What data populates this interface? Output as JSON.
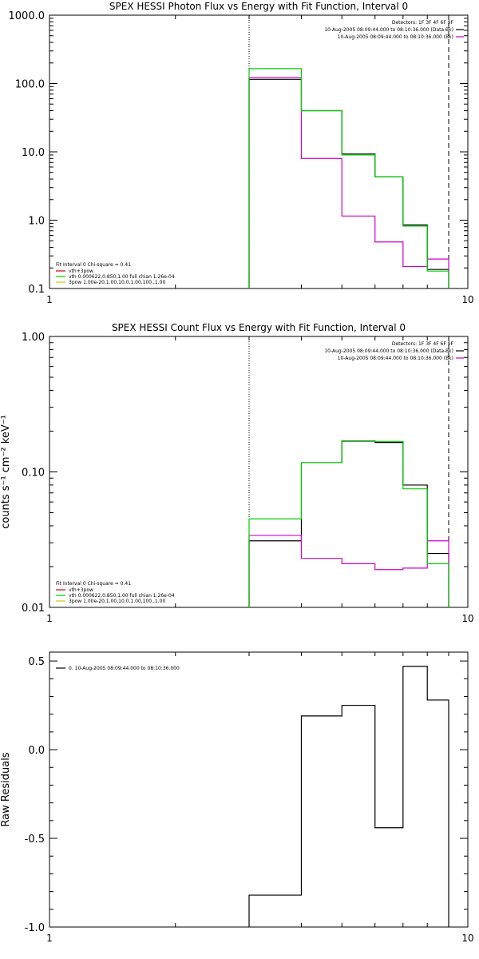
{
  "chart_data": [
    {
      "type": "line",
      "title": "SPEX HESSI Photon Flux vs Energy with Fit Function, Interval 0",
      "xlabel": "",
      "ylabel": "",
      "xscale": "log",
      "yscale": "log",
      "xlim": [
        1,
        10
      ],
      "ylim": [
        0.1,
        1000
      ],
      "xticks": [
        {
          "v": 1,
          "label": "1"
        },
        {
          "v": 10,
          "label": "10"
        }
      ],
      "yticks": [
        {
          "v": 0.1,
          "label": "0.1"
        },
        {
          "v": 1,
          "label": "1.0"
        },
        {
          "v": 10,
          "label": "10.0"
        },
        {
          "v": 100,
          "label": "100.0"
        },
        {
          "v": 1000,
          "label": "1000.0"
        }
      ],
      "vlines": [
        {
          "x": 3.0,
          "style": "dotted"
        },
        {
          "x": 9.0,
          "style": "dashed"
        }
      ],
      "legend_top": {
        "lines": [
          {
            "text": "Detectors: 1F 3F 4F 6F 9F",
            "color": null
          },
          {
            "text": "10-Aug-2005 08:09:44.000 to 08:10:36.000 (Data-Bk)",
            "color": "#000000"
          },
          {
            "text": "10-Aug-2005 08:09:44.000 to 08:10:36.000 (Bk)",
            "color": "#cc00cc"
          }
        ]
      },
      "legend_bottom": {
        "header": "Fit Interval  0   Chi-square = 0.41",
        "lines": [
          {
            "text": "vth+3pow",
            "color": "#cc0000"
          },
          {
            "text": "vth 0.000622,0.850,1.00  full chian 1.26e-04",
            "color": "#00cc00"
          },
          {
            "text": "3pow 1.00e-20,1.00,10.0,1.00,100.,1.00",
            "color": "#cccc00"
          }
        ]
      },
      "edges": [
        3.0,
        4.0,
        5.0,
        6.0,
        7.0,
        8.0,
        9.0
      ],
      "series": [
        {
          "name": "10-Aug-2005 08:09:44.000 to 08:10:36.000 (Data-Bk)",
          "color": "#000000",
          "values": [
            115,
            40,
            9.3,
            4.3,
            0.85,
            0.19
          ]
        },
        {
          "name": "10-Aug-2005 08:09:44.000 to 08:10:36.000 (Bk)",
          "color": "#cc00cc",
          "values": [
            122,
            8.0,
            1.15,
            0.48,
            0.21,
            0.27
          ]
        },
        {
          "name": "vth 0.000622,0.850,1.00  full chian 1.26e-04",
          "color": "#00cc00",
          "values": [
            165,
            40,
            9.0,
            4.3,
            0.82,
            0.18
          ]
        }
      ]
    },
    {
      "type": "line",
      "title": "SPEX HESSI Count Flux vs Energy with Fit Function, Interval 0",
      "xlabel": "",
      "ylabel": "counts s⁻¹ cm⁻² keV⁻¹",
      "xscale": "log",
      "yscale": "log",
      "xlim": [
        1,
        10
      ],
      "ylim": [
        0.01,
        1.0
      ],
      "xticks": [
        {
          "v": 1,
          "label": "1"
        },
        {
          "v": 10,
          "label": "10"
        }
      ],
      "yticks": [
        {
          "v": 0.01,
          "label": "0.01"
        },
        {
          "v": 0.1,
          "label": "0.10"
        },
        {
          "v": 1,
          "label": "1.00"
        }
      ],
      "vlines": [
        {
          "x": 3.0,
          "style": "dotted"
        },
        {
          "x": 9.0,
          "style": "dashed"
        }
      ],
      "legend_top": {
        "lines": [
          {
            "text": "Detectors: 1F 3F 4F 6F 9F",
            "color": null
          },
          {
            "text": "10-Aug-2005 08:09:44.000 to 08:10:36.000 (Data-Bk)",
            "color": "#000000"
          },
          {
            "text": "10-Aug-2005 08:09:44.000 to 08:10:36.000 (Bk)",
            "color": "#cc00cc"
          }
        ]
      },
      "legend_bottom": {
        "header": "Fit Interval  0   Chi-square = 0.41",
        "lines": [
          {
            "text": "vth+3pow",
            "color": "#cc0000"
          },
          {
            "text": "vth 0.000622,0.850,1.00  full chian 1.26e-04",
            "color": "#00cc00"
          },
          {
            "text": "3pow 1.00e-20,1.00,10.0,1.00,100.,1.00",
            "color": "#cccc00"
          }
        ]
      },
      "edges": [
        3.0,
        4.0,
        5.0,
        6.0,
        7.0,
        8.0,
        9.0
      ],
      "series": [
        {
          "name": "10-Aug-2005 08:09:44.000 to 08:10:36.000 (Data-Bk)",
          "color": "#000000",
          "values": [
            0.031,
            0.117,
            0.169,
            0.165,
            0.08,
            0.025
          ]
        },
        {
          "name": "10-Aug-2005 08:09:44.000 to 08:10:36.000 (Bk)",
          "color": "#cc00cc",
          "values": [
            0.034,
            0.023,
            0.021,
            0.019,
            0.0195,
            0.031
          ]
        },
        {
          "name": "vth 0.000622,0.850,1.00  full chian 1.26e-04",
          "color": "#00cc00",
          "values": [
            0.045,
            0.117,
            0.17,
            0.168,
            0.075,
            0.021
          ]
        }
      ]
    },
    {
      "type": "line",
      "title": "",
      "xlabel": "",
      "ylabel": "Raw Residuals",
      "xscale": "log",
      "yscale": "linear",
      "xlim": [
        1,
        10
      ],
      "ylim": [
        -1.0,
        0.55
      ],
      "xticks": [
        {
          "v": 1,
          "label": "1"
        },
        {
          "v": 10,
          "label": "10"
        }
      ],
      "yticks": [
        {
          "v": -1.0,
          "label": "-1.0"
        },
        {
          "v": -0.5,
          "label": "-0.5"
        },
        {
          "v": 0.0,
          "label": "0.0"
        },
        {
          "v": 0.5,
          "label": "0.5"
        }
      ],
      "vlines": [],
      "legend_top_left": {
        "lines": [
          {
            "text": "0. 10-Aug-2005 08:09:44.000 to 08:10:36.000",
            "color": "#000000"
          }
        ]
      },
      "edges": [
        3.0,
        4.0,
        5.0,
        6.0,
        7.0,
        8.0,
        9.0
      ],
      "series": [
        {
          "name": "0. 10-Aug-2005 08:09:44.000 to 08:10:36.000",
          "color": "#000000",
          "values": [
            -0.82,
            0.19,
            0.25,
            -0.44,
            0.47,
            0.28
          ]
        }
      ]
    }
  ]
}
